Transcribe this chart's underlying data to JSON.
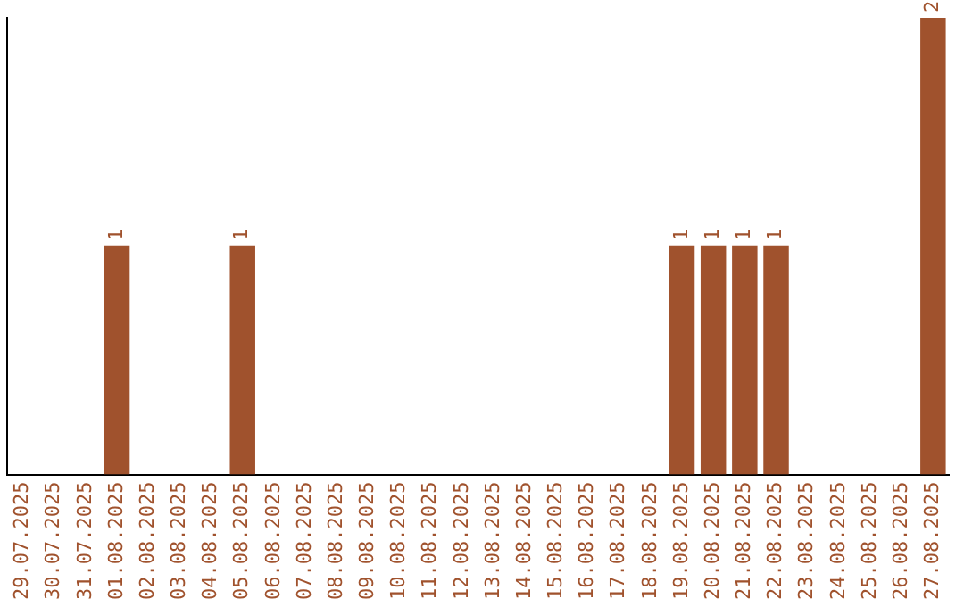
{
  "chart_data": {
    "type": "bar",
    "categories": [
      "29.07.2025",
      "30.07.2025",
      "31.07.2025",
      "01.08.2025",
      "02.08.2025",
      "03.08.2025",
      "04.08.2025",
      "05.08.2025",
      "06.08.2025",
      "07.08.2025",
      "08.08.2025",
      "09.08.2025",
      "10.08.2025",
      "11.08.2025",
      "12.08.2025",
      "13.08.2025",
      "14.08.2025",
      "15.08.2025",
      "16.08.2025",
      "17.08.2025",
      "18.08.2025",
      "19.08.2025",
      "20.08.2025",
      "21.08.2025",
      "22.08.2025",
      "23.08.2025",
      "24.08.2025",
      "25.08.2025",
      "26.08.2025",
      "27.08.2025"
    ],
    "values": [
      0,
      0,
      0,
      1,
      0,
      0,
      0,
      1,
      0,
      0,
      0,
      0,
      0,
      0,
      0,
      0,
      0,
      0,
      0,
      0,
      0,
      1,
      1,
      1,
      1,
      0,
      0,
      0,
      0,
      2
    ],
    "value_labels": [
      null,
      null,
      null,
      "1",
      null,
      null,
      null,
      "1",
      null,
      null,
      null,
      null,
      null,
      null,
      null,
      null,
      null,
      null,
      null,
      null,
      null,
      "1",
      "1",
      "1",
      "1",
      null,
      null,
      null,
      null,
      "2"
    ],
    "color": "#a0522d",
    "tick_labels": "x",
    "grid": false,
    "legend": false
  }
}
